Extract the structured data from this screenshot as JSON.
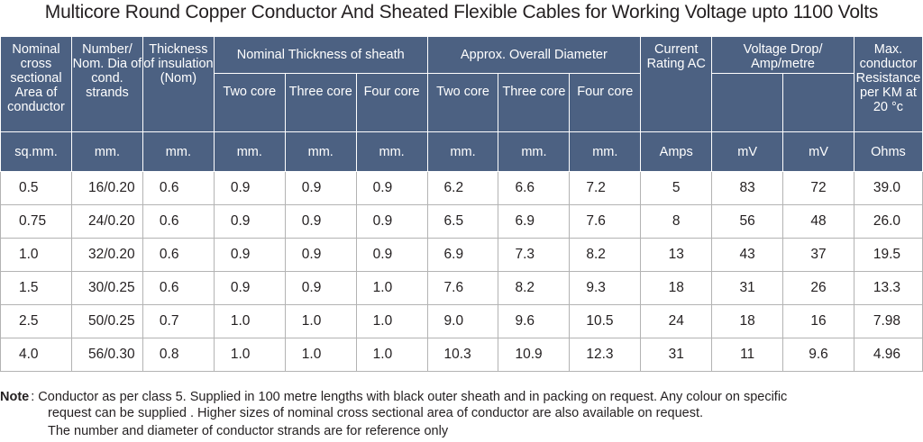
{
  "title": "Multicore Round Copper Conductor And Sheated Flexible Cables for Working Voltage upto 1100 Volts",
  "header": {
    "area": "Nominal cross sectional Area of conductor",
    "strands": "Number/ Nom. Dia of cond. strands",
    "insulation": "Thickness of insulation (Nom)",
    "sheath": "Nominal Thickness of sheath",
    "diameter": "Approx. Overall Diameter",
    "rating": "Current Rating AC",
    "vdrop": "Voltage Drop/ Amp/metre",
    "resistance": "Max. conductor Resistance per KM at 20 °c",
    "two_core": "Two core",
    "three_core": "Three core",
    "four_core": "Four core"
  },
  "units": [
    "sq.mm.",
    "mm.",
    "mm.",
    "mm.",
    "mm.",
    "mm.",
    "mm.",
    "mm.",
    "mm.",
    "Amps",
    "mV",
    "mV",
    "Ohms"
  ],
  "rows": [
    [
      "0.5",
      "16/0.20",
      "0.6",
      "0.9",
      "0.9",
      "0.9",
      "6.2",
      "6.6",
      "7.2",
      "5",
      "83",
      "72",
      "39.0"
    ],
    [
      "0.75",
      "24/0.20",
      "0.6",
      "0.9",
      "0.9",
      "0.9",
      "6.5",
      "6.9",
      "7.6",
      "8",
      "56",
      "48",
      "26.0"
    ],
    [
      "1.0",
      "32/0.20",
      "0.6",
      "0.9",
      "0.9",
      "0.9",
      "6.9",
      "7.3",
      "8.2",
      "13",
      "43",
      "37",
      "19.5"
    ],
    [
      "1.5",
      "30/0.25",
      "0.6",
      "0.9",
      "0.9",
      "1.0",
      "7.6",
      "8.2",
      "9.3",
      "18",
      "31",
      "26",
      "13.3"
    ],
    [
      "2.5",
      "50/0.25",
      "0.7",
      "1.0",
      "1.0",
      "1.0",
      "9.0",
      "9.6",
      "10.5",
      "24",
      "18",
      "16",
      "7.98"
    ],
    [
      "4.0",
      "56/0.30",
      "0.8",
      "1.0",
      "1.0",
      "1.0",
      "10.3",
      "10.9",
      "12.3",
      "31",
      "11",
      "9.6",
      "4.96"
    ]
  ],
  "note": {
    "label": "Note",
    "line1": ": Conductor as per class 5. Supplied in 100 metre lengths with black outer sheath and in packing on request. Any colour on specific",
    "line2": "request can be supplied . Higher sizes of nominal cross sectional area of conductor are also available on request.",
    "line3": "The number and diameter of conductor strands are for reference only"
  },
  "colors": {
    "header_bg": "#4c6182",
    "header_text": "#ffffff",
    "grid": "#b3b3b3",
    "text": "#231f20"
  }
}
